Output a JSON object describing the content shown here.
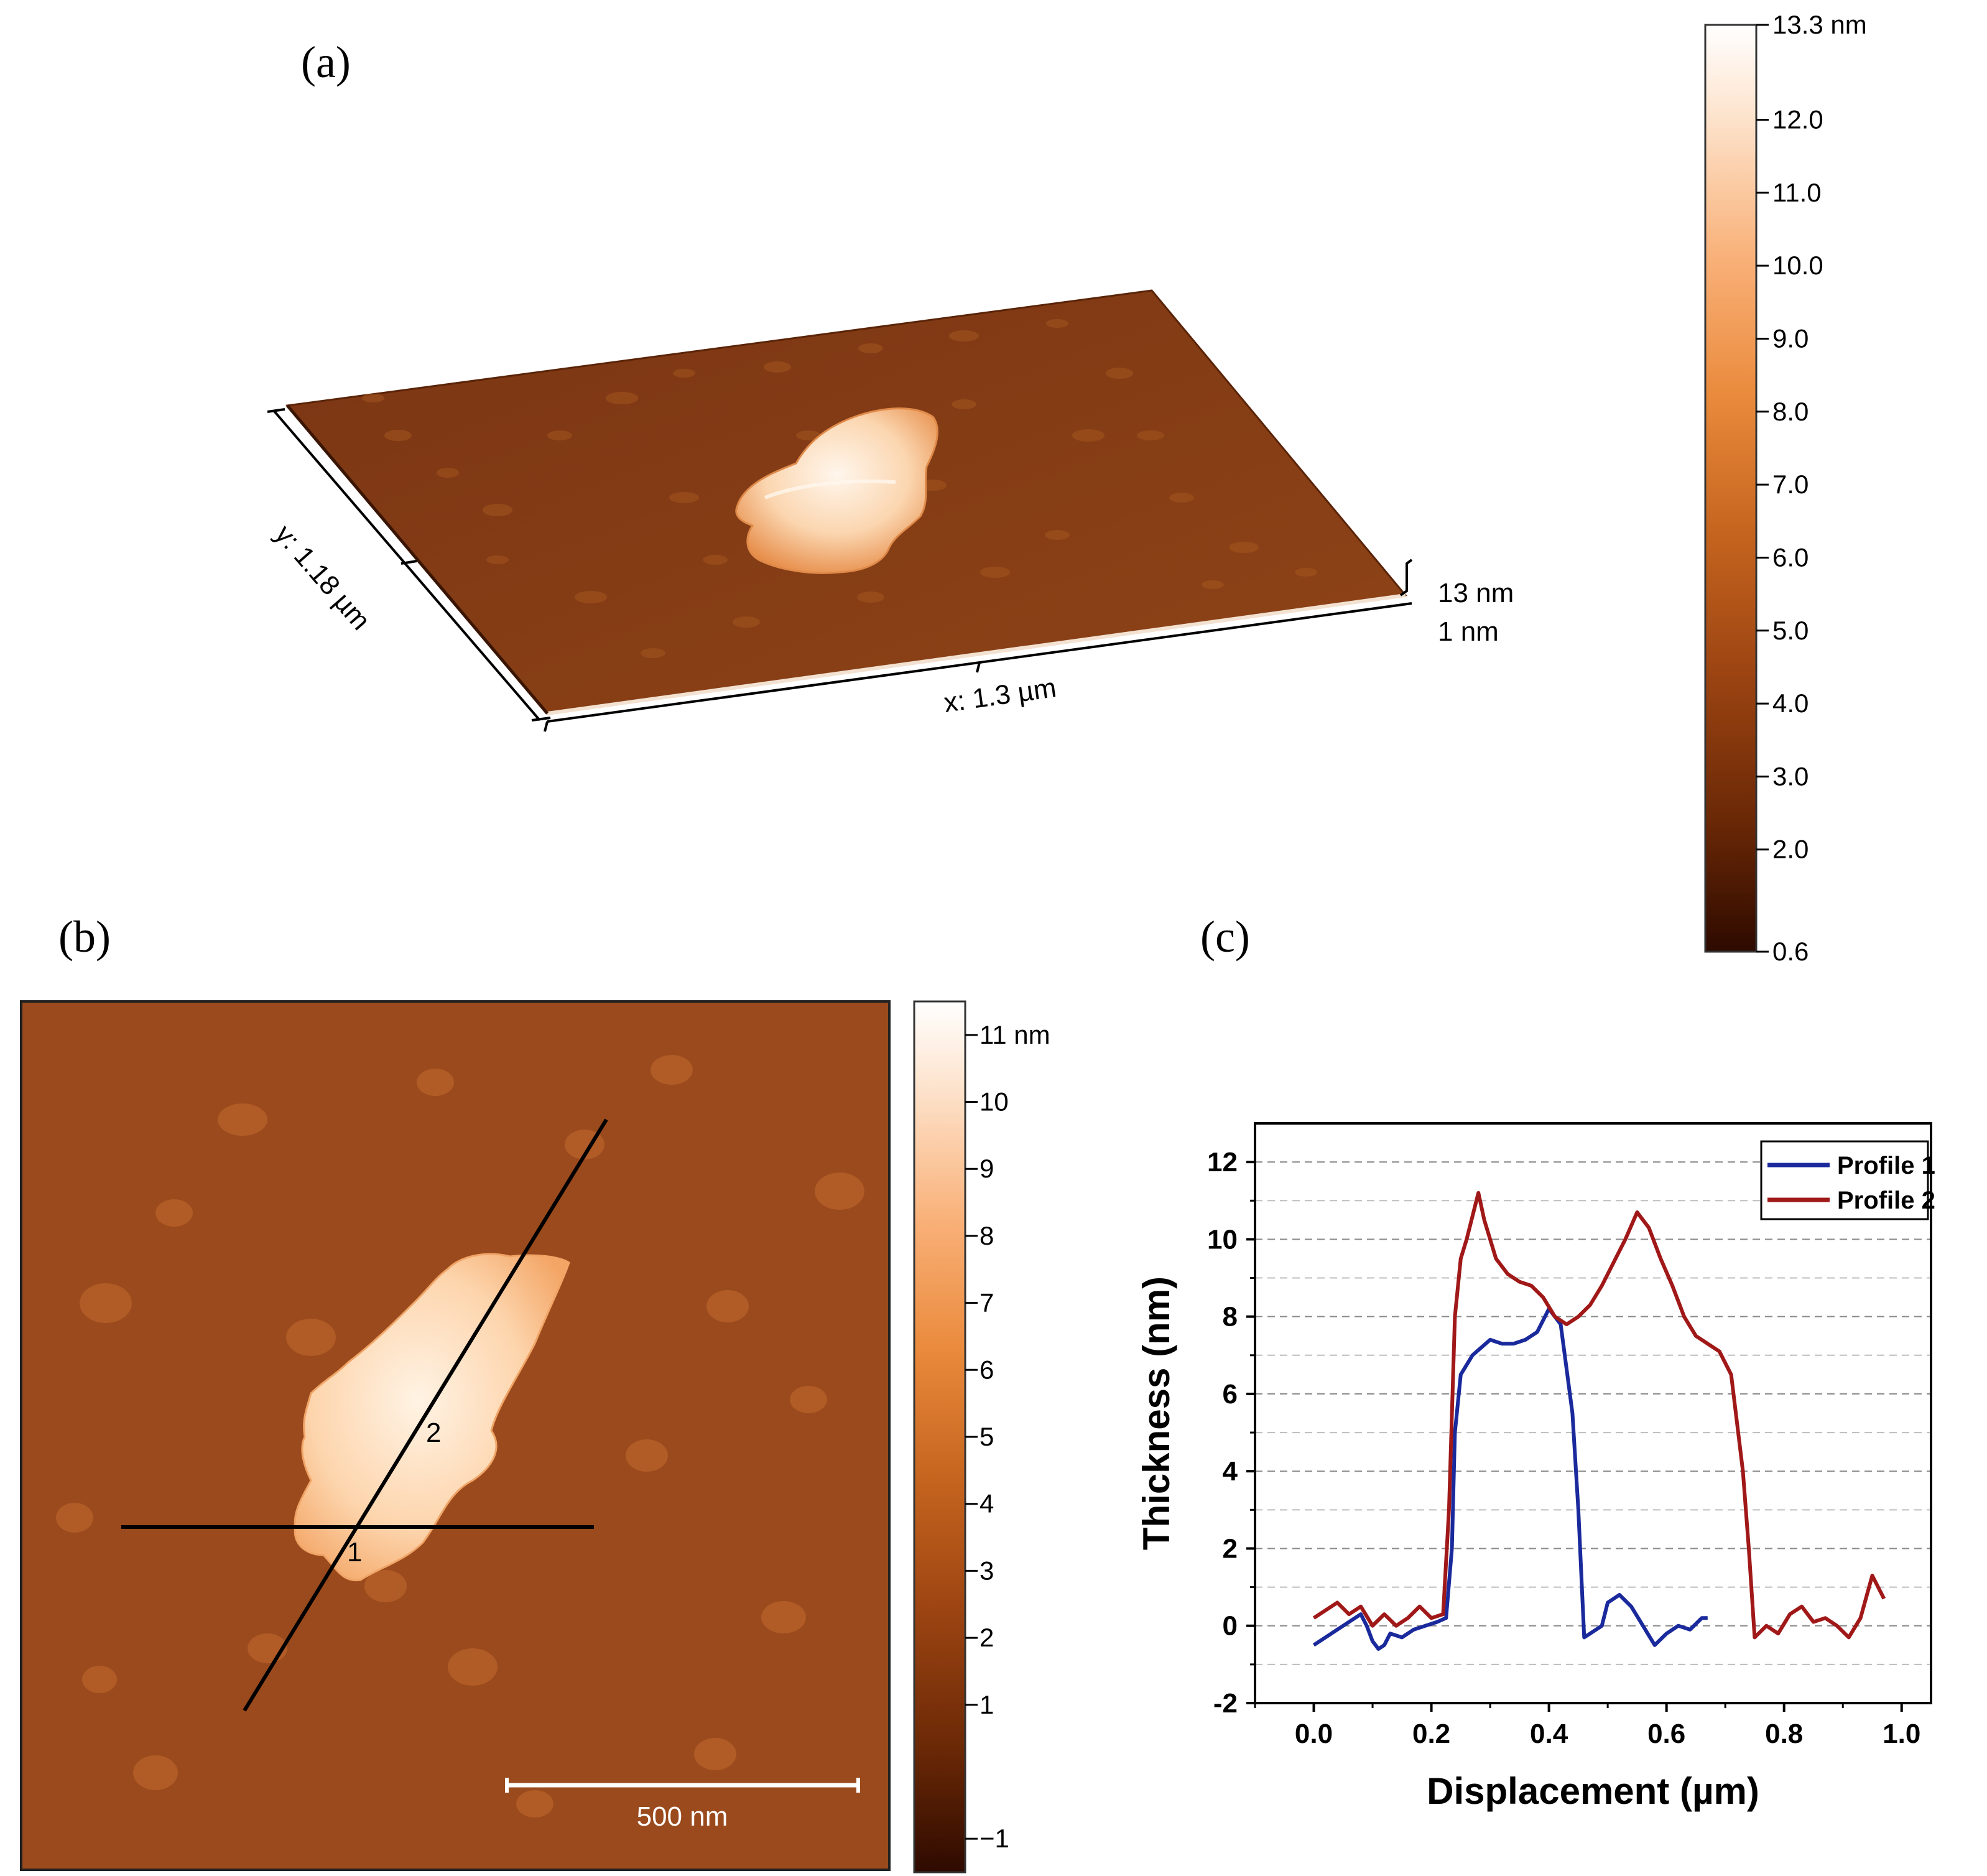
{
  "panels": {
    "a": {
      "label": "(a)",
      "x_axis_label": "x: 1.3 µm",
      "y_axis_label": "y: 1.18 µm",
      "z_scale_top": "13 nm",
      "z_scale_bottom": "1 nm",
      "colorbar": {
        "ticks": [
          "13.3 nm",
          "12.0",
          "11.0",
          "10.0",
          "9.0",
          "8.0",
          "7.0",
          "6.0",
          "5.0",
          "4.0",
          "3.0",
          "2.0",
          "0.6"
        ],
        "tick_values": [
          13.3,
          12.0,
          11.0,
          10.0,
          9.0,
          8.0,
          7.0,
          6.0,
          5.0,
          4.0,
          3.0,
          2.0,
          0.6
        ],
        "min": 0.6,
        "max": 13.3
      }
    },
    "b": {
      "label": "(b)",
      "line_labels": [
        "1",
        "2"
      ],
      "scalebar_label": "500 nm",
      "colorbar": {
        "ticks": [
          "11 nm",
          "10",
          "9",
          "8",
          "7",
          "6",
          "5",
          "4",
          "3",
          "2",
          "1",
          "−1"
        ],
        "tick_values": [
          11,
          10,
          9,
          8,
          7,
          6,
          5,
          4,
          3,
          2,
          1,
          -1
        ],
        "min": -1.5,
        "max": 11.5
      }
    },
    "c": {
      "label": "(c)"
    }
  },
  "colormap": [
    "#2e0a00",
    "#6a2806",
    "#9c4412",
    "#c5641e",
    "#ea8a3c",
    "#f9b179",
    "#fde3cc",
    "#ffffff"
  ],
  "chart_data": {
    "type": "line",
    "title": "",
    "xlabel": "Displacement (µm)",
    "ylabel": "Thickness (nm)",
    "xlim": [
      -0.1,
      1.05
    ],
    "ylim": [
      -2,
      13
    ],
    "xticks": [
      0.0,
      0.2,
      0.4,
      0.6,
      0.8,
      1.0
    ],
    "xtick_labels": [
      "0.0",
      "0.2",
      "0.4",
      "0.6",
      "0.8",
      "1.0"
    ],
    "yticks": [
      -2,
      0,
      2,
      4,
      6,
      8,
      10,
      12
    ],
    "ytick_labels": [
      "-2",
      "0",
      "2",
      "4",
      "6",
      "8",
      "10",
      "12"
    ],
    "grid": "dashed horizontal",
    "legend": "top-right",
    "series": [
      {
        "name": "Profile 1",
        "color": "#1a2a9c",
        "x": [
          0.0,
          0.02,
          0.04,
          0.06,
          0.08,
          0.09,
          0.1,
          0.11,
          0.12,
          0.13,
          0.15,
          0.17,
          0.19,
          0.21,
          0.225,
          0.235,
          0.24,
          0.25,
          0.27,
          0.3,
          0.32,
          0.34,
          0.36,
          0.38,
          0.4,
          0.42,
          0.44,
          0.45,
          0.46,
          0.47,
          0.49,
          0.5,
          0.52,
          0.54,
          0.56,
          0.58,
          0.6,
          0.62,
          0.64,
          0.66,
          0.67
        ],
        "y": [
          -0.5,
          -0.3,
          -0.1,
          0.1,
          0.3,
          0.0,
          -0.4,
          -0.6,
          -0.5,
          -0.2,
          -0.3,
          -0.1,
          0.0,
          0.1,
          0.2,
          2.0,
          5.0,
          6.5,
          7.0,
          7.4,
          7.3,
          7.3,
          7.4,
          7.6,
          8.2,
          7.8,
          5.5,
          3.0,
          -0.3,
          -0.2,
          0.0,
          0.6,
          0.8,
          0.5,
          0.0,
          -0.5,
          -0.2,
          0.0,
          -0.1,
          0.2,
          0.2
        ]
      },
      {
        "name": "Profile 2",
        "color": "#a01818",
        "x": [
          0.0,
          0.02,
          0.04,
          0.06,
          0.08,
          0.1,
          0.12,
          0.14,
          0.16,
          0.18,
          0.2,
          0.22,
          0.23,
          0.24,
          0.25,
          0.26,
          0.27,
          0.28,
          0.29,
          0.31,
          0.33,
          0.35,
          0.37,
          0.39,
          0.41,
          0.43,
          0.45,
          0.47,
          0.49,
          0.51,
          0.53,
          0.55,
          0.57,
          0.59,
          0.61,
          0.63,
          0.65,
          0.67,
          0.69,
          0.71,
          0.73,
          0.74,
          0.75,
          0.77,
          0.79,
          0.81,
          0.83,
          0.85,
          0.87,
          0.89,
          0.91,
          0.93,
          0.95,
          0.97
        ],
        "y": [
          0.2,
          0.4,
          0.6,
          0.3,
          0.5,
          0.0,
          0.3,
          0.0,
          0.2,
          0.5,
          0.2,
          0.3,
          3.0,
          8.0,
          9.5,
          10.0,
          10.6,
          11.2,
          10.5,
          9.5,
          9.1,
          8.9,
          8.8,
          8.5,
          8.0,
          7.8,
          8.0,
          8.3,
          8.8,
          9.4,
          10.0,
          10.7,
          10.3,
          9.5,
          8.8,
          8.0,
          7.5,
          7.3,
          7.1,
          6.5,
          4.0,
          2.0,
          -0.3,
          0.0,
          -0.2,
          0.3,
          0.5,
          0.1,
          0.2,
          0.0,
          -0.3,
          0.2,
          1.3,
          0.7
        ]
      }
    ]
  }
}
